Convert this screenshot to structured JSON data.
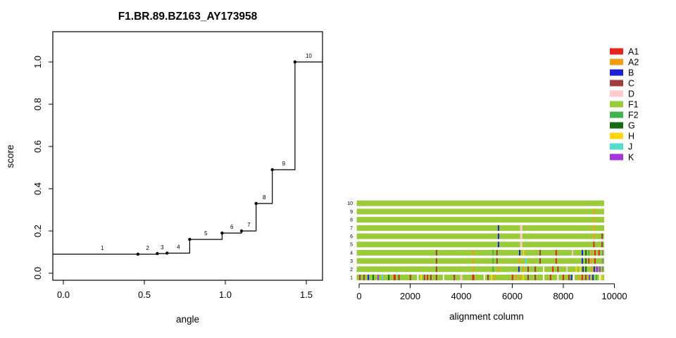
{
  "figure": {
    "background": "#ffffff"
  },
  "chart_data": [
    {
      "type": "line",
      "subtype": "step",
      "title": "F1.BR.89.BZ163_AY173958",
      "xlabel": "angle",
      "ylabel": "score",
      "xticks": [
        0.0,
        0.5,
        1.0,
        1.5
      ],
      "xtick_labels": [
        "0.0",
        "0.5",
        "1.0",
        "1.5"
      ],
      "yticks": [
        0.0,
        0.2,
        0.4,
        0.6,
        0.8,
        1.0
      ],
      "ytick_labels": [
        "0.0",
        "0.2",
        "0.4",
        "0.6",
        "0.8",
        "1.0"
      ],
      "xlim": [
        -0.065,
        1.6
      ],
      "ylim": [
        -0.03,
        1.14
      ],
      "grid": false,
      "legend_position": "none",
      "points": [
        {
          "label": "1",
          "angle": 0.02,
          "score": 0.09,
          "marker": false
        },
        {
          "label": "2",
          "angle": 0.46,
          "score": 0.09
        },
        {
          "label": "3",
          "angle": 0.58,
          "score": 0.093
        },
        {
          "label": "4",
          "angle": 0.64,
          "score": 0.095
        },
        {
          "label": "5",
          "angle": 0.78,
          "score": 0.16
        },
        {
          "label": "6",
          "angle": 0.98,
          "score": 0.19
        },
        {
          "label": "7",
          "angle": 1.1,
          "score": 0.2
        },
        {
          "label": "8",
          "angle": 1.19,
          "score": 0.33
        },
        {
          "label": "9",
          "angle": 1.29,
          "score": 0.49
        },
        {
          "label": "10",
          "angle": 1.43,
          "score": 1.0
        }
      ]
    },
    {
      "type": "bar",
      "subtype": "alignment-strips",
      "xlabel": "alignment column",
      "xticks": [
        0,
        2000,
        4000,
        6000,
        8000,
        10000
      ],
      "xtick_labels": [
        "0",
        "2000",
        "4000",
        "6000",
        "8000",
        "10000"
      ],
      "xlim": [
        0,
        10000
      ],
      "bar_span": [
        0,
        9600
      ],
      "base_color_key": "F1",
      "rows": [
        {
          "label": "1",
          "marks": [
            [
              30,
              "C"
            ],
            [
              190,
              "C"
            ],
            [
              360,
              "B"
            ],
            [
              550,
              "G"
            ],
            [
              745,
              "K"
            ],
            [
              910,
              "J"
            ],
            [
              1160,
              "G"
            ],
            [
              1390,
              "A1",
              3
            ],
            [
              1560,
              "C"
            ],
            [
              2010,
              "C"
            ],
            [
              2300,
              "white"
            ],
            [
              2430,
              "H"
            ],
            [
              2560,
              "C"
            ],
            [
              2680,
              "A1"
            ],
            [
              2810,
              "C"
            ],
            [
              3030,
              "C"
            ],
            [
              3310,
              "white"
            ],
            [
              3730,
              "C"
            ],
            [
              4000,
              "D",
              3
            ],
            [
              4470,
              "A1",
              3
            ],
            [
              4910,
              "white"
            ],
            [
              5050,
              "C"
            ],
            [
              5190,
              "H"
            ],
            [
              5320,
              "A2"
            ],
            [
              6010,
              "A1"
            ],
            [
              6150,
              "A2"
            ],
            [
              6290,
              "A2"
            ],
            [
              6430,
              "H"
            ],
            [
              6620,
              "C"
            ],
            [
              6900,
              "C"
            ],
            [
              7230,
              "white"
            ],
            [
              7500,
              "A1"
            ],
            [
              7790,
              "white"
            ],
            [
              8000,
              "A1"
            ],
            [
              8220,
              "C"
            ],
            [
              8320,
              "B"
            ],
            [
              8410,
              "white"
            ],
            [
              8610,
              "A2"
            ],
            [
              8740,
              "A1"
            ],
            [
              8880,
              "C"
            ],
            [
              9020,
              "K"
            ],
            [
              9160,
              "B"
            ],
            [
              9300,
              "F2"
            ],
            [
              9430,
              "white"
            ],
            [
              9500,
              "H"
            ]
          ]
        },
        {
          "label": "2",
          "marks": [
            [
              3030,
              "C"
            ],
            [
              4470,
              "A2"
            ],
            [
              5250,
              "F2"
            ],
            [
              5460,
              "A2"
            ],
            [
              6260,
              "B"
            ],
            [
              6430,
              "A2"
            ],
            [
              6620,
              "C"
            ],
            [
              6900,
              "C"
            ],
            [
              7230,
              "white"
            ],
            [
              7590,
              "A1"
            ],
            [
              7790,
              "C"
            ],
            [
              8140,
              "D"
            ],
            [
              8500,
              "H"
            ],
            [
              8660,
              "H"
            ],
            [
              8770,
              "B"
            ],
            [
              8885,
              "G"
            ],
            [
              9105,
              "A2"
            ],
            [
              9210,
              "B"
            ],
            [
              9320,
              "K",
              3
            ],
            [
              9430,
              "K"
            ],
            [
              9545,
              "gray"
            ]
          ]
        },
        {
          "label": "3",
          "marks": [
            [
              3030,
              "C"
            ],
            [
              4470,
              "A2"
            ],
            [
              5250,
              "F2"
            ],
            [
              5400,
              "C"
            ],
            [
              6290,
              "A2"
            ],
            [
              6540,
              "J"
            ],
            [
              7090,
              "C"
            ],
            [
              7720,
              "A1"
            ],
            [
              8745,
              "B"
            ],
            [
              8885,
              "G"
            ],
            [
              9000,
              "A1"
            ],
            [
              9105,
              "A2"
            ],
            [
              9240,
              "A1"
            ],
            [
              9545,
              "gray"
            ]
          ]
        },
        {
          "label": "4",
          "marks": [
            [
              3030,
              "C"
            ],
            [
              4470,
              "A2"
            ],
            [
              5250,
              "F2"
            ],
            [
              5400,
              "C"
            ],
            [
              6290,
              "B"
            ],
            [
              6440,
              "H"
            ],
            [
              7090,
              "C"
            ],
            [
              7720,
              "A1"
            ],
            [
              8360,
              "D"
            ],
            [
              8745,
              "B"
            ],
            [
              8885,
              "G"
            ],
            [
              9000,
              "F2"
            ],
            [
              9105,
              "A2"
            ],
            [
              9240,
              "A1"
            ],
            [
              9400,
              "A1"
            ],
            [
              9545,
              "gray"
            ]
          ]
        },
        {
          "label": "5",
          "marks": [
            [
              5460,
              "B"
            ],
            [
              6350,
              "D",
              3
            ],
            [
              9200,
              "A1"
            ],
            [
              9520,
              "C"
            ]
          ]
        },
        {
          "label": "6",
          "marks": [
            [
              5460,
              "B"
            ],
            [
              6350,
              "D",
              3
            ],
            [
              9200,
              "A2"
            ],
            [
              9520,
              "C"
            ]
          ]
        },
        {
          "label": "7",
          "marks": [
            [
              5460,
              "B"
            ],
            [
              6350,
              "D",
              3
            ],
            [
              9200,
              "A2"
            ]
          ]
        },
        {
          "label": "8",
          "marks": [
            [
              9200,
              "A2"
            ]
          ]
        },
        {
          "label": "9",
          "marks": [
            [
              9200,
              "A2"
            ]
          ]
        },
        {
          "label": "10",
          "marks": []
        }
      ]
    }
  ],
  "legend": {
    "entries": [
      {
        "label": "A1",
        "color": "#E8221A"
      },
      {
        "label": "A2",
        "color": "#F49C14"
      },
      {
        "label": "B",
        "color": "#1F1FD9"
      },
      {
        "label": "C",
        "color": "#A03C3C"
      },
      {
        "label": "D",
        "color": "#FFC9CF"
      },
      {
        "label": "F1",
        "color": "#9ACC3A"
      },
      {
        "label": "F2",
        "color": "#3DB54A"
      },
      {
        "label": "G",
        "color": "#156B15"
      },
      {
        "label": "H",
        "color": "#FFD511"
      },
      {
        "label": "J",
        "color": "#52DCCC"
      },
      {
        "label": "K",
        "color": "#A235DB"
      }
    ],
    "extra_colors": {
      "gray": "#8C8C80",
      "white": "#FFFFFF"
    }
  }
}
